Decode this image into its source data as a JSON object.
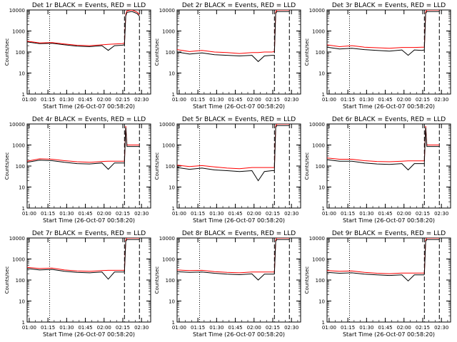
{
  "figure": {
    "x_tick_labels": [
      "01:00",
      "01:15",
      "01:30",
      "01:45",
      "02:00",
      "02:15",
      "02:30"
    ],
    "y_tick_labels": [
      "1",
      "10",
      "100",
      "1000",
      "10000"
    ],
    "y_label": "Counts/sec",
    "x_label": "Start Time (26-Oct-07 00:58:20)",
    "colors": {
      "events": "#000000",
      "lld": "#ff0000",
      "axes": "#000000"
    }
  },
  "chart_data": [
    {
      "type": "line",
      "title": "Det 1r BLACK = Events, RED = LLD",
      "xlabel": "Start Time (26-Oct-07 00:58:20)",
      "ylabel": "Counts/sec",
      "xlim_minutes": [
        0,
        99
      ],
      "ylim": [
        1,
        10000
      ],
      "yscale": "log",
      "dotted_line_minute": 18,
      "dashed_line_minutes": [
        78,
        90
      ],
      "x_minutes": [
        0,
        10,
        20,
        30,
        40,
        50,
        60,
        65,
        70,
        76,
        78
      ],
      "series": [
        {
          "name": "Events",
          "color": "black",
          "values": [
            300,
            250,
            260,
            220,
            190,
            180,
            200,
            120,
            200,
            210,
            220
          ]
        },
        {
          "name": "LLD",
          "color": "red",
          "values": [
            330,
            270,
            280,
            240,
            210,
            200,
            220,
            230,
            240,
            250,
            260
          ]
        }
      ],
      "post_spike": {
        "minutes": [
          78,
          79,
          80,
          84,
          88,
          90
        ],
        "values": [
          260,
          6000,
          9000,
          10000,
          8000,
          6000
        ]
      }
    },
    {
      "type": "line",
      "title": "Det 2r BLACK = Events, RED = LLD",
      "xlabel": "Start Time (26-Oct-07 00:58:20)",
      "ylabel": "Counts/sec",
      "xlim_minutes": [
        0,
        99
      ],
      "ylim": [
        1,
        10000
      ],
      "yscale": "log",
      "dotted_line_minute": 18,
      "dashed_line_minutes": [
        78,
        90
      ],
      "x_minutes": [
        0,
        10,
        20,
        30,
        40,
        50,
        60,
        65,
        70,
        76,
        78
      ],
      "series": [
        {
          "name": "Events",
          "color": "black",
          "values": [
            100,
            80,
            90,
            75,
            70,
            65,
            70,
            35,
            65,
            70,
            70
          ]
        },
        {
          "name": "LLD",
          "color": "red",
          "values": [
            130,
            105,
            120,
            100,
            95,
            85,
            95,
            95,
            100,
            100,
            105
          ]
        }
      ],
      "post_spike": {
        "minutes": [
          78,
          79,
          80,
          84,
          88,
          90
        ],
        "values": [
          105,
          8000,
          10000,
          10000,
          10000,
          10000
        ]
      }
    },
    {
      "type": "line",
      "title": "Det 3r BLACK = Events, RED = LLD",
      "xlabel": "Start Time (26-Oct-07 00:58:20)",
      "ylabel": "Counts/sec",
      "xlim_minutes": [
        0,
        99
      ],
      "ylim": [
        1,
        10000
      ],
      "yscale": "log",
      "dotted_line_minute": 18,
      "dashed_line_minutes": [
        78,
        90
      ],
      "x_minutes": [
        0,
        10,
        20,
        30,
        40,
        50,
        60,
        65,
        70,
        76,
        78
      ],
      "series": [
        {
          "name": "Events",
          "color": "black",
          "values": [
            170,
            140,
            150,
            130,
            120,
            110,
            125,
            70,
            125,
            120,
            125
          ]
        },
        {
          "name": "LLD",
          "color": "red",
          "values": [
            220,
            180,
            200,
            170,
            160,
            150,
            165,
            165,
            165,
            170,
            170
          ]
        }
      ],
      "post_spike": {
        "minutes": [
          78,
          79,
          80,
          84,
          88,
          90
        ],
        "values": [
          170,
          8000,
          10000,
          10000,
          10000,
          10000
        ]
      }
    },
    {
      "type": "line",
      "title": "Det 4r BLACK = Events, RED = LLD",
      "xlabel": "Start Time (26-Oct-07 00:58:20)",
      "ylabel": "Counts/sec",
      "xlim_minutes": [
        0,
        99
      ],
      "ylim": [
        1,
        10000
      ],
      "yscale": "log",
      "dotted_line_minute": 18,
      "dashed_line_minutes": [
        78,
        90
      ],
      "x_minutes": [
        0,
        10,
        20,
        30,
        40,
        50,
        60,
        65,
        70,
        76,
        78
      ],
      "series": [
        {
          "name": "Events",
          "color": "black",
          "values": [
            150,
            190,
            180,
            150,
            130,
            125,
            140,
            70,
            140,
            140,
            140
          ]
        },
        {
          "name": "LLD",
          "color": "red",
          "values": [
            170,
            220,
            210,
            180,
            160,
            150,
            165,
            170,
            170,
            170,
            170
          ]
        }
      ],
      "post_spike": {
        "minutes": [
          78,
          79,
          80,
          84,
          88,
          90
        ],
        "values": [
          170,
          8000,
          1000,
          1000,
          1000,
          1000
        ]
      }
    },
    {
      "type": "line",
      "title": "Det 5r BLACK = Events, RED = LLD",
      "xlabel": "Start Time (26-Oct-07 00:58:20)",
      "ylabel": "Counts/sec",
      "xlim_minutes": [
        0,
        99
      ],
      "ylim": [
        1,
        10000
      ],
      "yscale": "log",
      "dotted_line_minute": 18,
      "dashed_line_minutes": [
        78,
        90
      ],
      "x_minutes": [
        0,
        10,
        20,
        30,
        40,
        50,
        60,
        65,
        70,
        76,
        78
      ],
      "series": [
        {
          "name": "Events",
          "color": "black",
          "values": [
            85,
            70,
            80,
            65,
            60,
            55,
            60,
            20,
            55,
            60,
            60
          ]
        },
        {
          "name": "LLD",
          "color": "red",
          "values": [
            110,
            95,
            105,
            90,
            80,
            75,
            85,
            85,
            85,
            85,
            85
          ]
        }
      ],
      "post_spike": {
        "minutes": [
          78,
          79,
          80,
          84,
          88,
          90
        ],
        "values": [
          85,
          8000,
          10000,
          10000,
          10000,
          10000
        ]
      }
    },
    {
      "type": "line",
      "title": "Det 6r BLACK = Events, RED = LLD",
      "xlabel": "Start Time (26-Oct-07 00:58:20)",
      "ylabel": "Counts/sec",
      "xlim_minutes": [
        0,
        99
      ],
      "ylim": [
        1,
        10000
      ],
      "yscale": "log",
      "dotted_line_minute": 18,
      "dashed_line_minutes": [
        78,
        90
      ],
      "x_minutes": [
        0,
        10,
        20,
        30,
        40,
        50,
        60,
        65,
        70,
        76,
        78
      ],
      "series": [
        {
          "name": "Events",
          "color": "black",
          "values": [
            200,
            170,
            170,
            140,
            125,
            120,
            130,
            65,
            130,
            130,
            130
          ]
        },
        {
          "name": "LLD",
          "color": "red",
          "values": [
            240,
            210,
            210,
            180,
            165,
            160,
            170,
            175,
            175,
            175,
            175
          ]
        }
      ],
      "post_spike": {
        "minutes": [
          78,
          79,
          80,
          84,
          88,
          90
        ],
        "values": [
          175,
          8000,
          1000,
          1000,
          1000,
          1000
        ]
      }
    },
    {
      "type": "line",
      "title": "Det 7r BLACK = Events, RED = LLD",
      "xlabel": "Start Time (26-Oct-07 00:58:20)",
      "ylabel": "Counts/sec",
      "xlim_minutes": [
        0,
        99
      ],
      "ylim": [
        1,
        10000
      ],
      "yscale": "log",
      "dotted_line_minute": 18,
      "dashed_line_minutes": [
        78,
        90
      ],
      "x_minutes": [
        0,
        10,
        20,
        30,
        40,
        50,
        60,
        65,
        70,
        76,
        78
      ],
      "series": [
        {
          "name": "Events",
          "color": "black",
          "values": [
            350,
            300,
            320,
            260,
            230,
            220,
            240,
            110,
            240,
            240,
            240
          ]
        },
        {
          "name": "LLD",
          "color": "red",
          "values": [
            400,
            350,
            370,
            300,
            270,
            260,
            280,
            290,
            290,
            290,
            290
          ]
        }
      ],
      "post_spike": {
        "minutes": [
          78,
          79,
          80,
          84,
          88,
          90
        ],
        "values": [
          290,
          8000,
          10000,
          10000,
          10000,
          10000
        ]
      }
    },
    {
      "type": "line",
      "title": "Det 8r BLACK = Events, RED = LLD",
      "xlabel": "Start Time (26-Oct-07 00:58:20)",
      "ylabel": "Counts/sec",
      "xlim_minutes": [
        0,
        99
      ],
      "ylim": [
        1,
        10000
      ],
      "yscale": "log",
      "dotted_line_minute": 18,
      "dashed_line_minutes": [
        78,
        90
      ],
      "x_minutes": [
        0,
        10,
        20,
        30,
        40,
        50,
        60,
        65,
        70,
        76,
        78
      ],
      "series": [
        {
          "name": "Events",
          "color": "black",
          "values": [
            250,
            230,
            240,
            210,
            190,
            180,
            195,
            100,
            190,
            190,
            190
          ]
        },
        {
          "name": "LLD",
          "color": "red",
          "values": [
            300,
            280,
            290,
            250,
            230,
            220,
            240,
            240,
            240,
            240,
            240
          ]
        }
      ],
      "post_spike": {
        "minutes": [
          78,
          79,
          80,
          84,
          88,
          90
        ],
        "values": [
          240,
          8000,
          10000,
          10000,
          10000,
          10000
        ]
      }
    },
    {
      "type": "line",
      "title": "Det 9r BLACK = Events, RED = LLD",
      "xlabel": "Start Time (26-Oct-07 00:58:20)",
      "ylabel": "Counts/sec",
      "xlim_minutes": [
        0,
        99
      ],
      "ylim": [
        1,
        10000
      ],
      "yscale": "log",
      "dotted_line_minute": 18,
      "dashed_line_minutes": [
        78,
        90
      ],
      "x_minutes": [
        0,
        10,
        20,
        30,
        40,
        50,
        60,
        65,
        70,
        76,
        78
      ],
      "series": [
        {
          "name": "Events",
          "color": "black",
          "values": [
            230,
            210,
            220,
            190,
            175,
            165,
            175,
            90,
            175,
            175,
            175
          ]
        },
        {
          "name": "LLD",
          "color": "red",
          "values": [
            280,
            260,
            270,
            230,
            210,
            200,
            215,
            215,
            215,
            215,
            215
          ]
        }
      ],
      "post_spike": {
        "minutes": [
          78,
          79,
          80,
          84,
          88,
          90
        ],
        "values": [
          215,
          8000,
          10000,
          10000,
          10000,
          10000
        ]
      }
    }
  ]
}
